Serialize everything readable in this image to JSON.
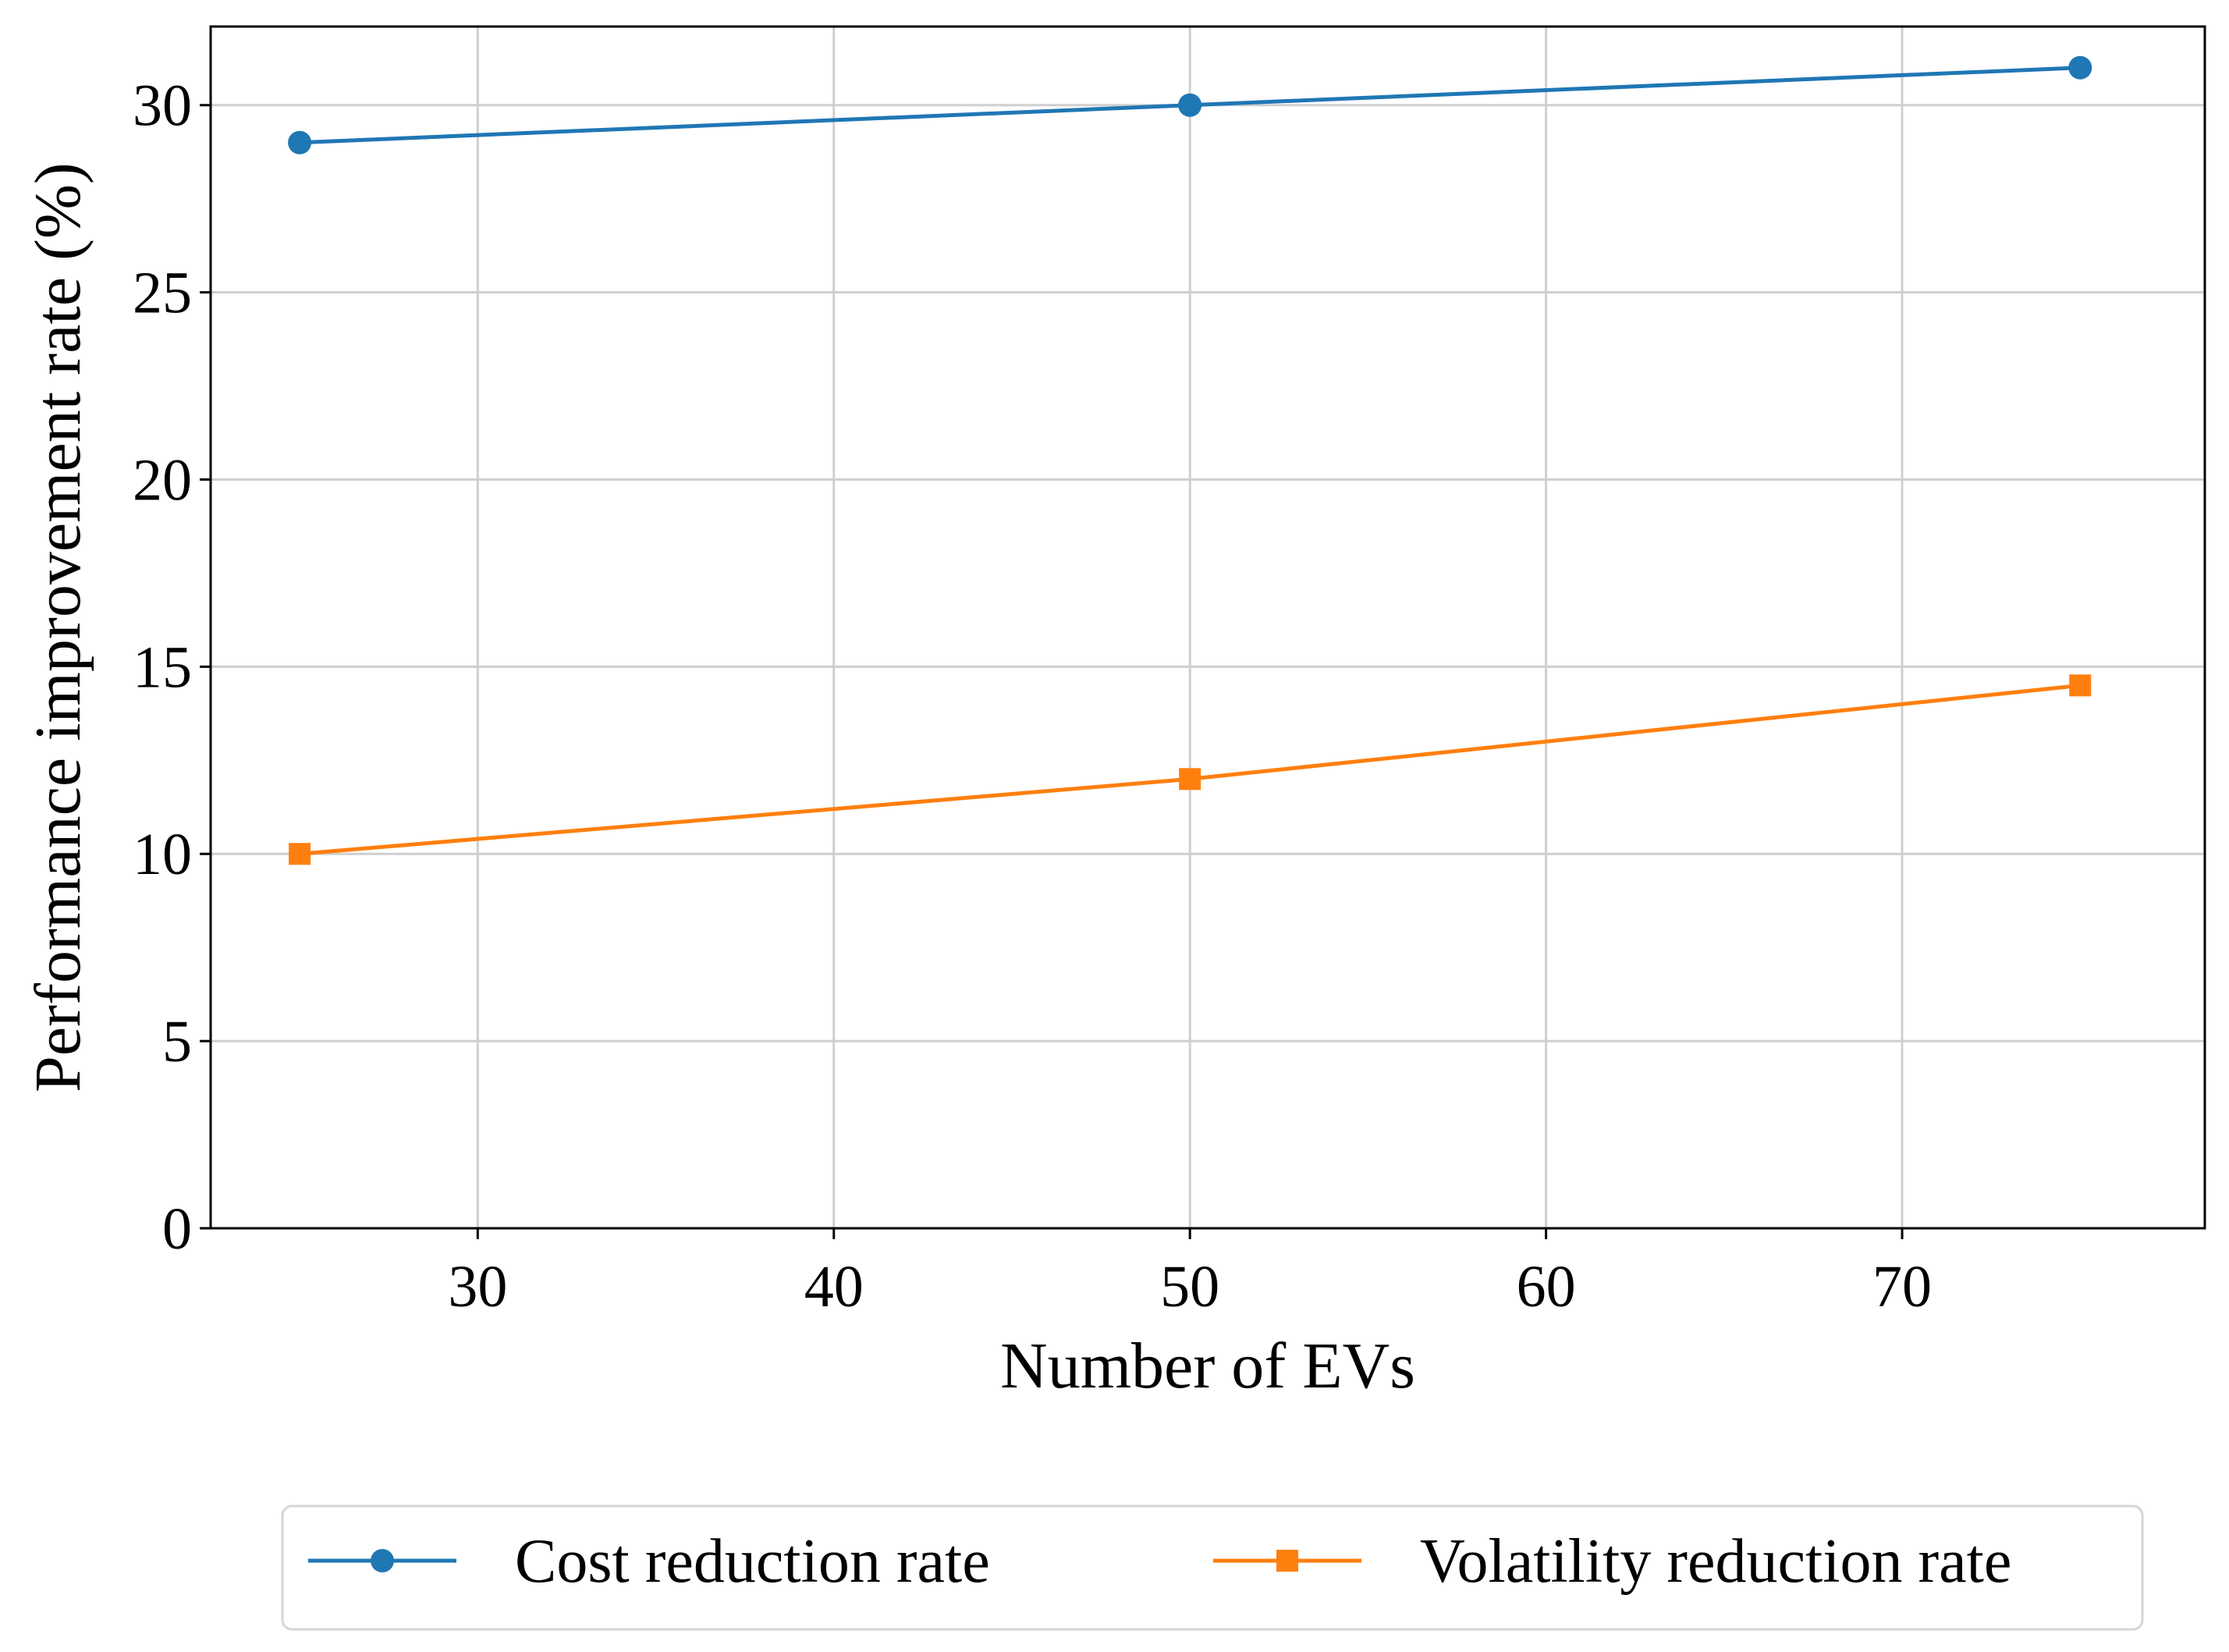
{
  "chart_data": {
    "type": "line",
    "title": "",
    "xlabel": "Number of EVs",
    "ylabel": "Performance improvement rate (%)",
    "x": [
      25,
      50,
      75
    ],
    "xlim": [
      22.5,
      78.5
    ],
    "ylim": [
      0,
      32.1
    ],
    "xticks": [
      30,
      40,
      50,
      60,
      70
    ],
    "xtick_labels": [
      "30",
      "40",
      "50",
      "60",
      "70"
    ],
    "yticks": [
      0,
      5,
      10,
      15,
      20,
      25,
      30
    ],
    "ytick_labels": [
      "0",
      "5",
      "10",
      "15",
      "20",
      "25",
      "30"
    ],
    "grid": true,
    "legend_position": "bottom-center-outside",
    "series": [
      {
        "name": "Cost reduction rate",
        "values": [
          29,
          30,
          31
        ],
        "color": "#1f77b4",
        "marker": "circle"
      },
      {
        "name": "Volatility reduction rate",
        "values": [
          10,
          12,
          14.5
        ],
        "color": "#ff7f0e",
        "marker": "square"
      }
    ]
  }
}
